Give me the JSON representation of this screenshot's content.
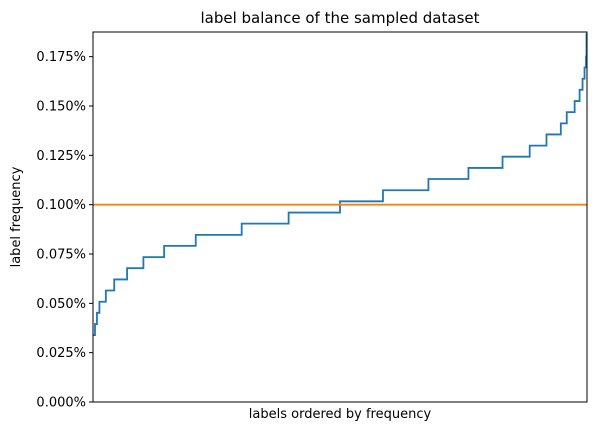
{
  "chart_data": {
    "type": "line",
    "title": "label balance of the sampled dataset",
    "xlabel": "labels ordered by frequency",
    "ylabel": "label frequency",
    "ylim": [
      0.0,
      0.1875
    ],
    "xlim": [
      0,
      1000
    ],
    "grid": false,
    "x_ticks_shown": false,
    "y_ticks": [
      {
        "value": 0.0,
        "label": "0.000%"
      },
      {
        "value": 0.025,
        "label": "0.025%"
      },
      {
        "value": 0.05,
        "label": "0.050%"
      },
      {
        "value": 0.075,
        "label": "0.075%"
      },
      {
        "value": 0.1,
        "label": "0.100%"
      },
      {
        "value": 0.125,
        "label": "0.125%"
      },
      {
        "value": 0.15,
        "label": "0.150%"
      },
      {
        "value": 0.175,
        "label": "0.175%"
      }
    ],
    "series": [
      {
        "color": "#1f77b4",
        "step": true,
        "points": [
          [
            0,
            0.0339
          ],
          [
            4,
            0.0395
          ],
          [
            8,
            0.0452
          ],
          [
            13,
            0.0508
          ],
          [
            26,
            0.0565
          ],
          [
            43,
            0.0621
          ],
          [
            69,
            0.0678
          ],
          [
            102,
            0.0734
          ],
          [
            144,
            0.0791
          ],
          [
            208,
            0.0847
          ],
          [
            301,
            0.0904
          ],
          [
            396,
            0.096
          ],
          [
            500,
            0.1017
          ],
          [
            587,
            0.1073
          ],
          [
            679,
            0.113
          ],
          [
            760,
            0.1186
          ],
          [
            829,
            0.1243
          ],
          [
            884,
            0.1299
          ],
          [
            918,
            0.1356
          ],
          [
            947,
            0.1412
          ],
          [
            959,
            0.1469
          ],
          [
            975,
            0.1525
          ],
          [
            985,
            0.1582
          ],
          [
            991,
            0.1638
          ],
          [
            995,
            0.1695
          ],
          [
            998,
            0.1751
          ],
          [
            999,
            0.1864
          ],
          [
            1000,
            0.1864
          ]
        ]
      },
      {
        "color": "#ff7f0e",
        "step": false,
        "points": [
          [
            0,
            0.1
          ],
          [
            1000,
            0.1
          ]
        ]
      }
    ]
  }
}
